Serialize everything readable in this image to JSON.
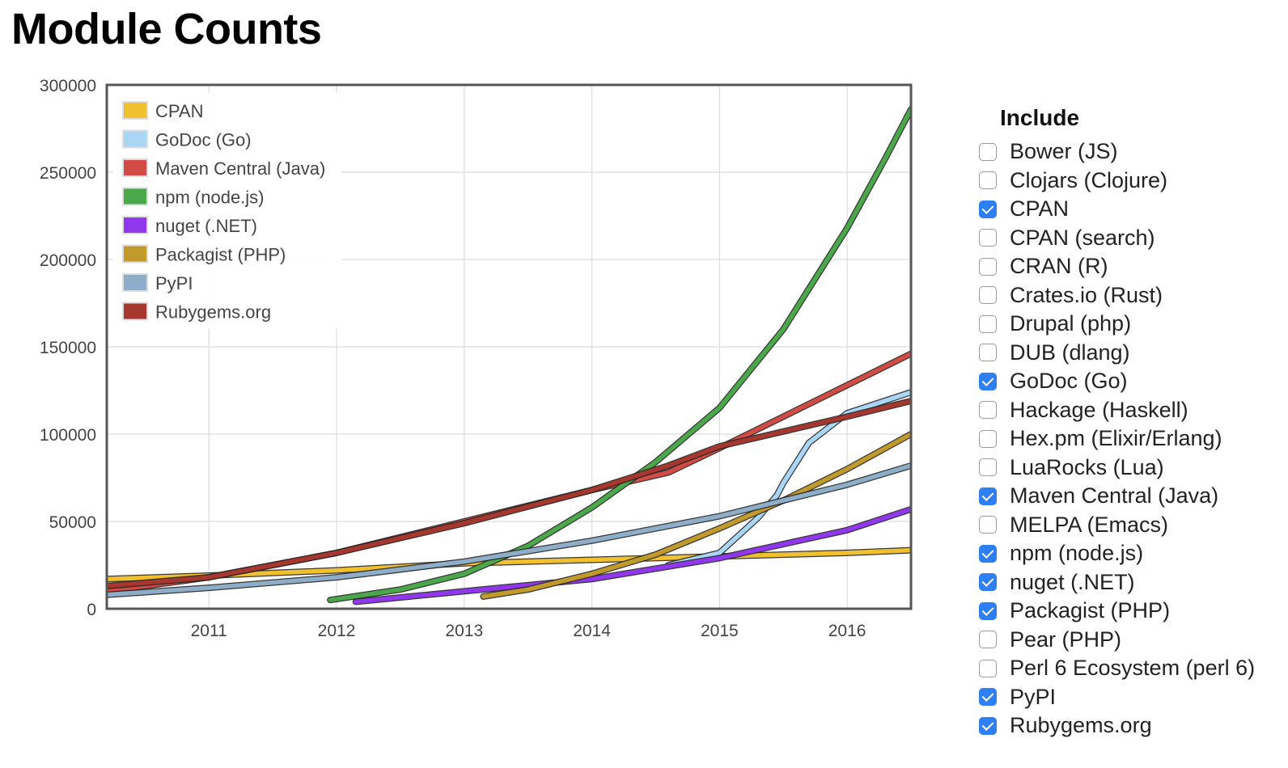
{
  "page": {
    "title": "Module Counts"
  },
  "include": {
    "title": "Include",
    "options": [
      {
        "label": "Bower (JS)",
        "checked": false
      },
      {
        "label": "Clojars (Clojure)",
        "checked": false
      },
      {
        "label": "CPAN",
        "checked": true
      },
      {
        "label": "CPAN (search)",
        "checked": false
      },
      {
        "label": "CRAN (R)",
        "checked": false
      },
      {
        "label": "Crates.io (Rust)",
        "checked": false
      },
      {
        "label": "Drupal (php)",
        "checked": false
      },
      {
        "label": "DUB (dlang)",
        "checked": false
      },
      {
        "label": "GoDoc (Go)",
        "checked": true
      },
      {
        "label": "Hackage (Haskell)",
        "checked": false
      },
      {
        "label": "Hex.pm (Elixir/Erlang)",
        "checked": false
      },
      {
        "label": "LuaRocks (Lua)",
        "checked": false
      },
      {
        "label": "Maven Central (Java)",
        "checked": true
      },
      {
        "label": "MELPA (Emacs)",
        "checked": false
      },
      {
        "label": "npm (node.js)",
        "checked": true
      },
      {
        "label": "nuget (.NET)",
        "checked": true
      },
      {
        "label": "Packagist (PHP)",
        "checked": true
      },
      {
        "label": "Pear (PHP)",
        "checked": false
      },
      {
        "label": "Perl 6 Ecosystem (perl 6)",
        "checked": false
      },
      {
        "label": "PyPI",
        "checked": true
      },
      {
        "label": "Rubygems.org",
        "checked": true
      }
    ]
  },
  "chart_data": {
    "type": "line",
    "title": "",
    "xlabel": "",
    "ylabel": "",
    "xlim": [
      2010.2,
      2016.5
    ],
    "ylim": [
      0,
      300000
    ],
    "x_ticks": [
      2011,
      2012,
      2013,
      2014,
      2015,
      2016
    ],
    "x_tick_labels": [
      "2011",
      "2012",
      "2013",
      "2014",
      "2015",
      "2016"
    ],
    "y_ticks": [
      0,
      50000,
      100000,
      150000,
      200000,
      250000,
      300000
    ],
    "y_tick_labels": [
      "0",
      "50000",
      "100000",
      "150000",
      "200000",
      "250000",
      "300000"
    ],
    "grid": true,
    "legend_position": "top-left",
    "series": [
      {
        "name": "CPAN",
        "color": "#f0c02e",
        "x": [
          2010.2,
          2011,
          2012,
          2013,
          2014,
          2015,
          2016,
          2016.5
        ],
        "y": [
          17000,
          19000,
          22000,
          26000,
          28000,
          30000,
          32000,
          33500
        ]
      },
      {
        "name": "GoDoc (Go)",
        "color": "#a9d6f5",
        "x": [
          2014.6,
          2015,
          2015.3,
          2015.45,
          2015.5,
          2015.7,
          2016,
          2016.5
        ],
        "y": [
          25000,
          32000,
          52000,
          65000,
          72000,
          95000,
          112000,
          124000
        ]
      },
      {
        "name": "Maven Central (Java)",
        "color": "#d24b45",
        "x": [
          2010.2,
          2011,
          2012,
          2013,
          2014,
          2014.6,
          2015,
          2016,
          2016.5
        ],
        "y": [
          10000,
          18000,
          32000,
          50000,
          68000,
          78000,
          92000,
          128000,
          146000
        ]
      },
      {
        "name": "npm (node.js)",
        "color": "#4aa84a",
        "x": [
          2011.95,
          2012.5,
          2013,
          2013.5,
          2014,
          2014.5,
          2015,
          2015.5,
          2016,
          2016.3,
          2016.5
        ],
        "y": [
          5000,
          11000,
          20000,
          36000,
          58000,
          84000,
          115000,
          160000,
          218000,
          258000,
          286000
        ]
      },
      {
        "name": "nuget (.NET)",
        "color": "#9137ee",
        "x": [
          2012.15,
          2013,
          2014,
          2015,
          2016,
          2016.5
        ],
        "y": [
          4000,
          10000,
          17000,
          29000,
          45000,
          57000
        ]
      },
      {
        "name": "Packagist (PHP)",
        "color": "#c19a2c",
        "x": [
          2013.15,
          2013.5,
          2014,
          2014.5,
          2015,
          2015.5,
          2016,
          2016.5
        ],
        "y": [
          7000,
          11000,
          20000,
          31000,
          46000,
          62000,
          80000,
          100000
        ]
      },
      {
        "name": "PyPI",
        "color": "#8eadc8",
        "x": [
          2010.2,
          2011,
          2012,
          2013,
          2014,
          2015,
          2016,
          2016.5
        ],
        "y": [
          8000,
          12000,
          18000,
          27000,
          39000,
          53000,
          71000,
          82000
        ]
      },
      {
        "name": "Rubygems.org",
        "color": "#a6372f",
        "x": [
          2010.2,
          2011,
          2012,
          2013,
          2014,
          2014.6,
          2015,
          2016,
          2016.5
        ],
        "y": [
          13000,
          18000,
          32000,
          49000,
          68000,
          82000,
          93000,
          110000,
          119000
        ]
      }
    ]
  }
}
